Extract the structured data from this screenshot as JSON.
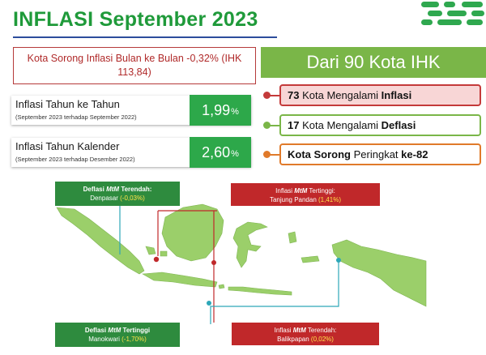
{
  "header": {
    "title": "INFLASI September 2023"
  },
  "mtm_box": {
    "text": "Kota Sorong Inflasi Bulan ke Bulan -0,32% (IHK 113,84)"
  },
  "yoy": {
    "label": "Inflasi Tahun ke Tahun",
    "sub": "(September 2023 terhadap September 2022)",
    "value_main": "1,99",
    "value_unit": "%"
  },
  "ytd": {
    "label": "Inflasi Tahun Kalender",
    "sub": "(September 2023 terhadap Desember 2022)",
    "value_main": "2,60",
    "value_unit": "%"
  },
  "ihk": {
    "header": "Dari 90 Kota IHK",
    "inflasi_count": "73",
    "inflasi_text": "Kota Mengalami",
    "inflasi_word": "Inflasi",
    "deflasi_count": "17",
    "deflasi_text": "Kota Mengalami",
    "deflasi_word": "Deflasi",
    "rank_city": "Kota Sorong",
    "rank_text": "Peringkat",
    "rank_value": "ke-82"
  },
  "colors": {
    "green": "#2da84a",
    "light_green": "#7ab648",
    "red": "#c43a3a",
    "orange": "#e07a2a",
    "title_green": "#1f9a3a"
  },
  "map": {
    "deflasi_terendah": {
      "prefix": "Deflasi",
      "italic": "MtM",
      "suffix": "Terendah:",
      "city": "Denpasar",
      "value": "(-0,03%)"
    },
    "inflasi_tertinggi": {
      "prefix": "Inflasi",
      "italic": "MtM",
      "suffix": "Tertinggi:",
      "city": "Tanjung Pandan",
      "value": "(1,41%)"
    },
    "deflasi_tertinggi": {
      "prefix": "Deflasi",
      "italic": "MtM",
      "suffix": "Tertinggi",
      "city": "Manokwari",
      "value": "(-1,70%)"
    },
    "inflasi_terendah": {
      "prefix": "Inflasi",
      "italic": "MtM",
      "suffix": "Terendah:",
      "city": "Balikpapan",
      "value": "(0,02%)"
    }
  }
}
